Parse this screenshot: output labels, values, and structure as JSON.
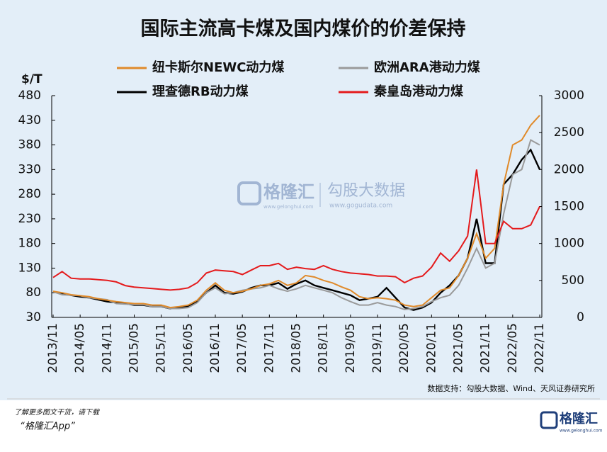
{
  "chart_data": {
    "type": "line",
    "title": "国际主流高卡煤及国内煤价的价差保持",
    "y_label": "$/T",
    "categories": [
      "2013/11",
      null,
      null,
      "2014/05",
      null,
      null,
      "2014/11",
      null,
      null,
      "2015/05",
      null,
      null,
      "2015/11",
      null,
      null,
      "2016/05",
      null,
      null,
      "2016/11",
      null,
      null,
      "2017/05",
      null,
      null,
      "2017/11",
      null,
      null,
      "2018/05",
      null,
      null,
      "2018/11",
      null,
      null,
      "2019/05",
      null,
      null,
      "2019/11",
      null,
      null,
      "2020/05",
      null,
      null,
      "2020/11",
      null,
      null,
      "2021/05",
      null,
      null,
      "2021/11",
      null,
      null,
      "2022/05",
      null,
      null,
      "2022/11"
    ],
    "series": [
      {
        "name": "纽卡斯尔NEWC动力煤",
        "color": "#e08a2a",
        "values": [
          83,
          80,
          76,
          74,
          72,
          68,
          65,
          62,
          60,
          58,
          58,
          55,
          55,
          50,
          52,
          55,
          65,
          85,
          100,
          85,
          80,
          83,
          88,
          95,
          98,
          105,
          95,
          100,
          115,
          112,
          105,
          100,
          92,
          85,
          72,
          68,
          70,
          68,
          65,
          55,
          52,
          55,
          70,
          85,
          90,
          115,
          150,
          200,
          150,
          170,
          300,
          380,
          390,
          420,
          440
        ]
      },
      {
        "name": "欧洲ARA港动力煤",
        "color": "#9a9a9a",
        "values": [
          82,
          76,
          75,
          74,
          70,
          68,
          66,
          58,
          57,
          56,
          56,
          52,
          52,
          48,
          48,
          50,
          60,
          80,
          90,
          78,
          80,
          85,
          88,
          90,
          95,
          88,
          83,
          88,
          95,
          90,
          85,
          80,
          70,
          62,
          55,
          55,
          60,
          55,
          52,
          46,
          48,
          52,
          62,
          70,
          75,
          95,
          130,
          170,
          130,
          140,
          240,
          320,
          330,
          390,
          380
        ]
      },
      {
        "name": "理查德RB动力煤",
        "color": "#000000",
        "values": [
          82,
          78,
          75,
          72,
          70,
          66,
          62,
          60,
          58,
          55,
          55,
          52,
          52,
          48,
          50,
          52,
          62,
          80,
          95,
          80,
          78,
          82,
          90,
          95,
          95,
          100,
          88,
          98,
          105,
          95,
          90,
          85,
          80,
          75,
          65,
          68,
          72,
          90,
          70,
          50,
          45,
          50,
          60,
          80,
          95,
          115,
          150,
          230,
          140,
          140,
          300,
          320,
          350,
          370,
          330
        ]
      },
      {
        "name": "秦皇岛港动力煤",
        "color": "#e41a1c",
        "axis": "y2",
        "values": [
          540,
          620,
          530,
          520,
          520,
          510,
          500,
          480,
          430,
          410,
          400,
          390,
          380,
          370,
          380,
          400,
          470,
          600,
          640,
          630,
          620,
          580,
          640,
          700,
          700,
          730,
          650,
          680,
          660,
          650,
          700,
          650,
          620,
          600,
          590,
          580,
          560,
          560,
          550,
          470,
          530,
          560,
          680,
          870,
          760,
          900,
          1100,
          2000,
          1000,
          1000,
          1300,
          1200,
          1200,
          1250,
          1500
        ]
      }
    ],
    "ylim": [
      30,
      480
    ],
    "yticks": [
      30,
      80,
      130,
      180,
      230,
      280,
      330,
      380,
      430,
      480
    ],
    "y2lim": [
      0,
      3000
    ],
    "y2ticks": [
      0,
      500,
      1000,
      1500,
      2000,
      2500,
      3000
    ]
  },
  "watermark": {
    "brand": "格隆汇",
    "brand_url": "www.gelonghui.com",
    "partner": "勾股大数据",
    "partner_url": "www.gogudata.com"
  },
  "source": "数据支持：勾股大数据、Wind、天风证券研究所",
  "footer": {
    "note": "了解更多图文干货，请下载",
    "app": "“格隆汇App”",
    "logo": "格隆汇",
    "logo_url": "www.gelonghui.com"
  }
}
